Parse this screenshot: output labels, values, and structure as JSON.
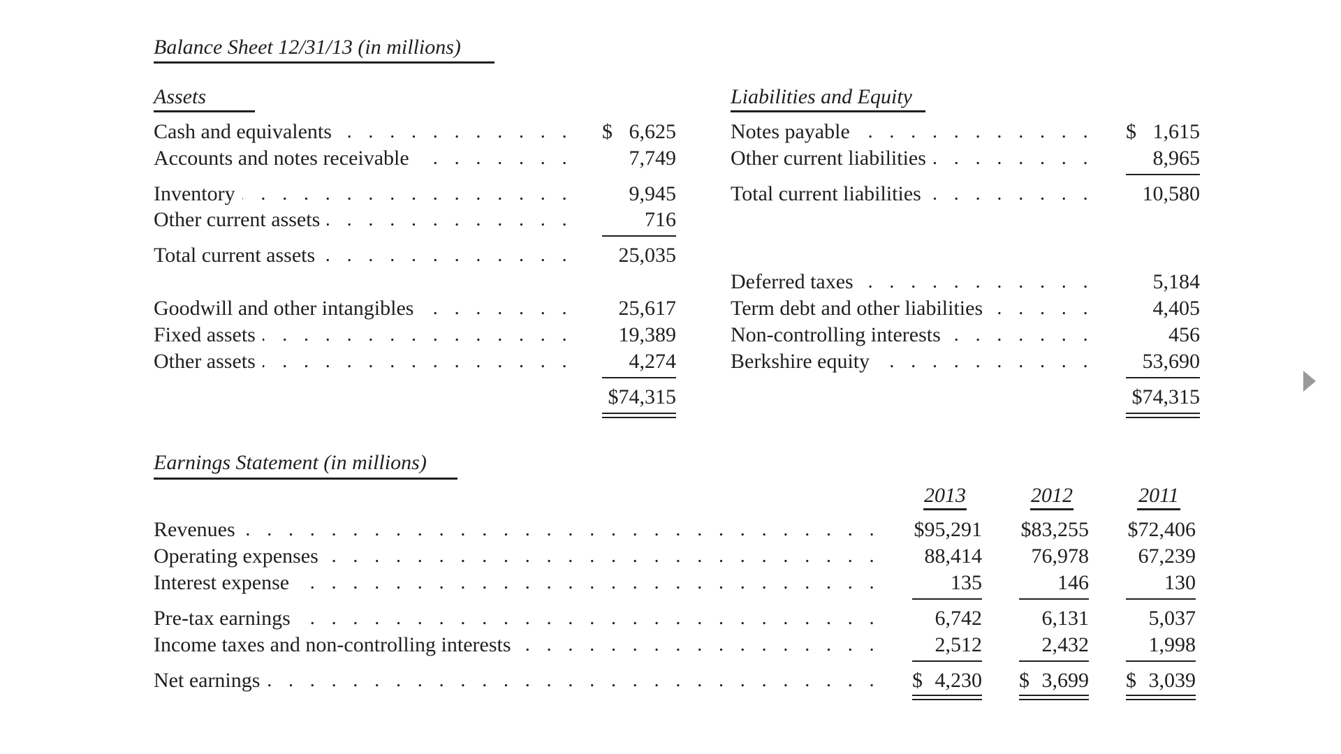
{
  "balance_sheet": {
    "title": "Balance Sheet 12/31/13 (in millions)",
    "assets_heading": "Assets",
    "liabilities_heading": "Liabilities and Equity",
    "assets": [
      {
        "label": "Cash and equivalents",
        "dollar": "$",
        "value": "6,625"
      },
      {
        "label": "Accounts and notes receivable",
        "dollar": "",
        "value": "7,749"
      },
      {
        "label": "Inventory",
        "dollar": "",
        "value": "9,945"
      },
      {
        "label": "Other current assets",
        "dollar": "",
        "value": "716"
      },
      {
        "label": "Total current assets",
        "dollar": "",
        "value": "25,035"
      },
      {
        "label": "Goodwill and other intangibles",
        "dollar": "",
        "value": "25,617"
      },
      {
        "label": "Fixed assets",
        "dollar": "",
        "value": "19,389"
      },
      {
        "label": "Other assets",
        "dollar": "",
        "value": "4,274"
      }
    ],
    "assets_total": "$74,315",
    "liabilities": [
      {
        "label": "Notes payable",
        "dollar": "$",
        "value": "1,615"
      },
      {
        "label": "Other current liabilities",
        "dollar": "",
        "value": "8,965"
      },
      {
        "label": "Total current liabilities",
        "dollar": "",
        "value": "10,580"
      },
      {
        "label": "Deferred taxes",
        "dollar": "",
        "value": "5,184"
      },
      {
        "label": "Term debt and other liabilities",
        "dollar": "",
        "value": "4,405"
      },
      {
        "label": "Non-controlling interests",
        "dollar": "",
        "value": "456"
      },
      {
        "label": "Berkshire equity",
        "dollar": "",
        "value": "53,690"
      }
    ],
    "liabilities_total": "$74,315"
  },
  "earnings_statement": {
    "title": "Earnings Statement (in millions)",
    "years": [
      "2013",
      "2012",
      "2011"
    ],
    "rows": [
      {
        "label": "Revenues",
        "values": [
          "$95,291",
          "$83,255",
          "$72,406"
        ]
      },
      {
        "label": "Operating expenses",
        "values": [
          "88,414",
          "76,978",
          "67,239"
        ]
      },
      {
        "label": "Interest expense",
        "values": [
          "135",
          "146",
          "130"
        ]
      },
      {
        "label": "Pre-tax earnings",
        "values": [
          "6,742",
          "6,131",
          "5,037"
        ]
      },
      {
        "label": "Income taxes and non-controlling interests",
        "values": [
          "2,512",
          "2,432",
          "1,998"
        ]
      },
      {
        "label": "Net earnings",
        "values": [
          "4,230",
          "3,699",
          "3,039"
        ]
      }
    ],
    "net_dollar": "$"
  },
  "leader_dots": ". . . . . . . . . . . . . . . . . . . . . . . . . . . . . . . . . . . . . . . . . . . . . . . . . . . . . . . . . . . . . . . . . . . . . . . . . . . . . . . . . . . . . . . . . . . . ."
}
